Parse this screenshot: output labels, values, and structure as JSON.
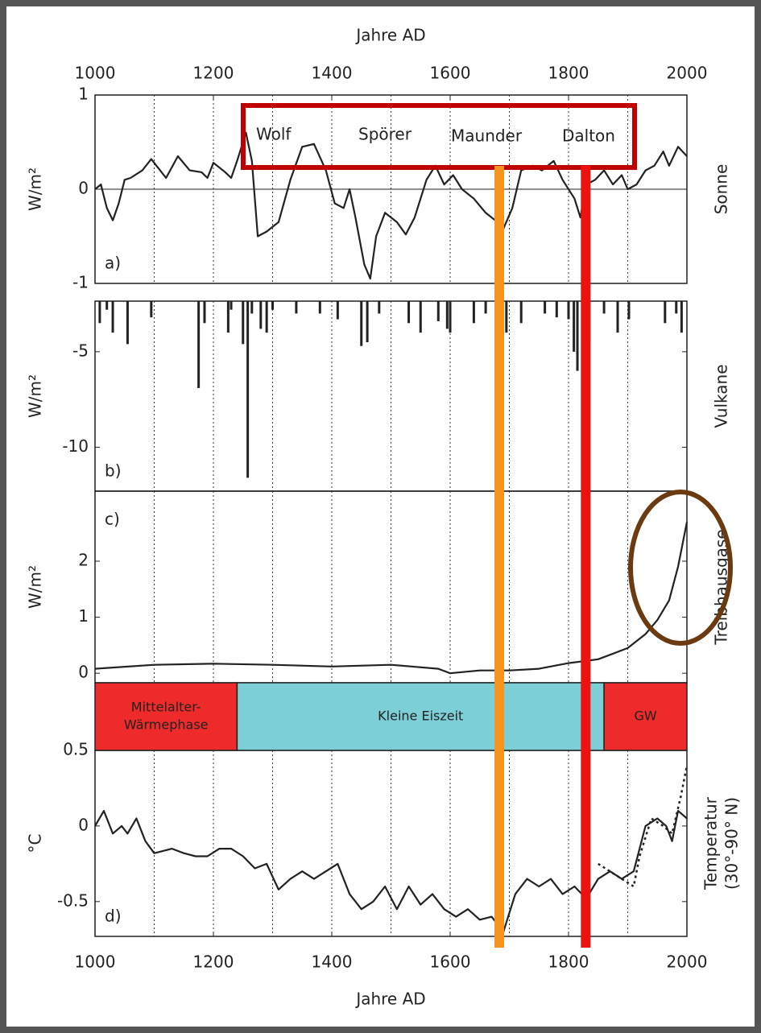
{
  "chart_data": {
    "xlabel": "Jahre AD",
    "xlim": [
      1000,
      2000
    ],
    "xticks": [
      1000,
      1200,
      1400,
      1600,
      1800,
      2000
    ],
    "xgrid": [
      1100,
      1200,
      1300,
      1400,
      1500,
      1600,
      1700,
      1800,
      1900
    ],
    "panels": [
      {
        "type": "line",
        "panel_label": "a)",
        "ylabel": "W/m²",
        "side_label": [
          "Sonne"
        ],
        "ylim": [
          -1,
          1
        ],
        "yticks": [
          -1,
          0,
          1
        ],
        "zero_line": true,
        "series": [
          {
            "color": "#222222",
            "dash": "solid",
            "x": [
              1000,
              1010,
              1020,
              1030,
              1040,
              1050,
              1060,
              1080,
              1095,
              1110,
              1120,
              1140,
              1160,
              1180,
              1190,
              1200,
              1220,
              1230,
              1240,
              1255,
              1265,
              1275,
              1290,
              1310,
              1330,
              1350,
              1370,
              1390,
              1405,
              1420,
              1430,
              1440,
              1455,
              1465,
              1475,
              1490,
              1510,
              1525,
              1540,
              1560,
              1575,
              1590,
              1605,
              1620,
              1640,
              1660,
              1680,
              1690,
              1705,
              1720,
              1740,
              1755,
              1775,
              1790,
              1810,
              1820,
              1830,
              1845,
              1860,
              1875,
              1890,
              1900,
              1915,
              1930,
              1945,
              1960,
              1970,
              1985,
              2000
            ],
            "values": [
              0,
              0.05,
              -0.2,
              -0.33,
              -0.15,
              0.1,
              0.12,
              0.2,
              0.32,
              0.2,
              0.12,
              0.35,
              0.2,
              0.18,
              0.12,
              0.28,
              0.18,
              0.12,
              0.3,
              0.6,
              0.3,
              -0.5,
              -0.45,
              -0.35,
              0.1,
              0.45,
              0.48,
              0.2,
              -0.15,
              -0.2,
              0,
              -0.3,
              -0.8,
              -0.95,
              -0.5,
              -0.25,
              -0.35,
              -0.48,
              -0.3,
              0.1,
              0.25,
              0.05,
              0.15,
              0,
              -0.1,
              -0.25,
              -0.35,
              -0.42,
              -0.2,
              0.2,
              0.25,
              0.2,
              0.3,
              0.1,
              -0.1,
              -0.3,
              0.05,
              0.1,
              0.2,
              0.05,
              0.15,
              0,
              0.05,
              0.2,
              0.25,
              0.4,
              0.25,
              0.45,
              0.35
            ]
          }
        ]
      },
      {
        "type": "bar",
        "panel_label": "b)",
        "ylabel": "W/m²",
        "side_label": [
          "Vulkane"
        ],
        "ylim": [
          -12.3,
          -2.35
        ],
        "yticks": [
          -5,
          -10
        ],
        "color": "#222222",
        "x": [
          1008,
          1020,
          1030,
          1055,
          1095,
          1175,
          1185,
          1225,
          1230,
          1250,
          1258,
          1265,
          1280,
          1290,
          1300,
          1340,
          1380,
          1410,
          1450,
          1460,
          1480,
          1530,
          1550,
          1580,
          1595,
          1600,
          1640,
          1660,
          1680,
          1695,
          1720,
          1760,
          1780,
          1800,
          1809,
          1815,
          1835,
          1860,
          1883,
          1902,
          1963,
          1982,
          1991
        ],
        "values": [
          -3.5,
          -2.8,
          -4.0,
          -4.6,
          -3.2,
          -6.9,
          -3.5,
          -4.0,
          -2.8,
          -4.6,
          -11.6,
          -3.0,
          -3.8,
          -4.0,
          -2.8,
          -3.0,
          -3.0,
          -3.3,
          -4.7,
          -4.5,
          -3.0,
          -3.5,
          -4.0,
          -3.4,
          -3.8,
          -4.0,
          -3.5,
          -3.0,
          -3.3,
          -4.0,
          -3.5,
          -3.0,
          -3.2,
          -3.3,
          -5.0,
          -6.0,
          -4.5,
          -3.0,
          -4.0,
          -3.3,
          -3.5,
          -3.0,
          -4.0
        ]
      },
      {
        "type": "line",
        "panel_label": "c)",
        "ylabel": "W/m²",
        "side_label": [
          "Treibhausgase"
        ],
        "ylim": [
          -0.17,
          3.25
        ],
        "yticks": [
          0,
          1,
          2
        ],
        "zero_line": false,
        "series": [
          {
            "color": "#222222",
            "dash": "solid",
            "x": [
              1000,
              1100,
              1200,
              1300,
              1400,
              1500,
              1580,
              1600,
              1650,
              1700,
              1750,
              1800,
              1850,
              1900,
              1930,
              1950,
              1970,
              1985,
              2000
            ],
            "values": [
              0.08,
              0.15,
              0.17,
              0.15,
              0.12,
              0.15,
              0.08,
              0.0,
              0.05,
              0.05,
              0.08,
              0.18,
              0.25,
              0.45,
              0.7,
              0.95,
              1.3,
              1.9,
              2.7
            ]
          }
        ]
      },
      {
        "type": "line",
        "panel_label": "d)",
        "ylabel": "°C",
        "side_label": [
          "Temperatur",
          "(30°-90° N)"
        ],
        "ylim": [
          -0.73,
          0.5
        ],
        "yticks": [
          0.5,
          0,
          -0.5
        ],
        "zero_line": false,
        "series": [
          {
            "color": "#222222",
            "dash": "solid",
            "x": [
              1000,
              1015,
              1030,
              1045,
              1055,
              1070,
              1085,
              1100,
              1130,
              1150,
              1170,
              1190,
              1210,
              1230,
              1250,
              1270,
              1290,
              1310,
              1330,
              1350,
              1370,
              1390,
              1410,
              1430,
              1450,
              1470,
              1490,
              1510,
              1530,
              1550,
              1570,
              1590,
              1610,
              1630,
              1650,
              1670,
              1690,
              1710,
              1730,
              1750,
              1770,
              1790,
              1810,
              1830,
              1850,
              1870,
              1890,
              1910,
              1930,
              1950,
              1965,
              1975,
              1985,
              2000
            ],
            "values": [
              0,
              0.1,
              -0.05,
              0,
              -0.05,
              0.05,
              -0.1,
              -0.18,
              -0.15,
              -0.18,
              -0.2,
              -0.2,
              -0.15,
              -0.15,
              -0.2,
              -0.28,
              -0.25,
              -0.42,
              -0.35,
              -0.3,
              -0.35,
              -0.3,
              -0.25,
              -0.45,
              -0.55,
              -0.5,
              -0.4,
              -0.55,
              -0.4,
              -0.52,
              -0.45,
              -0.55,
              -0.6,
              -0.55,
              -0.62,
              -0.6,
              -0.7,
              -0.45,
              -0.35,
              -0.4,
              -0.35,
              -0.45,
              -0.4,
              -0.48,
              -0.35,
              -0.3,
              -0.35,
              -0.3,
              0,
              0.05,
              0,
              -0.1,
              0.1,
              0.05
            ]
          },
          {
            "color": "#222222",
            "dash": "dotted",
            "x": [
              1850,
              1870,
              1890,
              1910,
              1920,
              1940,
              1960,
              1975,
              1990,
              2000
            ],
            "values": [
              -0.25,
              -0.3,
              -0.35,
              -0.4,
              -0.2,
              0.05,
              0,
              -0.05,
              0.2,
              0.4
            ]
          }
        ]
      }
    ],
    "periods": [
      {
        "label": [
          "Mittelalter-",
          "Wärmephase"
        ],
        "start": 1000,
        "end": 1240,
        "color": "#ee2a2a"
      },
      {
        "label": [
          "Kleine Eiszeit"
        ],
        "start": 1240,
        "end": 1860,
        "color": "#7ccfd6"
      },
      {
        "label": [
          "GW"
        ],
        "start": 1860,
        "end": 2000,
        "color": "#ee2a2a"
      }
    ],
    "minima": [
      "Wolf",
      "Spörer",
      "Maunder",
      "Dalton"
    ],
    "markers": [
      {
        "x": 1683,
        "color": "#f7941d"
      },
      {
        "x": 1829,
        "color": "#ee1111"
      }
    ]
  }
}
